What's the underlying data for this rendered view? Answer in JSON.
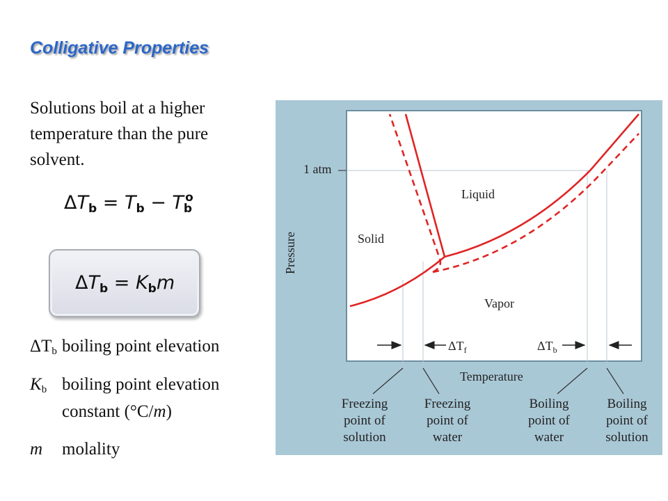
{
  "slide": {
    "title": "Colligative Properties",
    "intro": "Solutions boil at a higher temperature than the pure solvent.",
    "definitions": [
      {
        "symbol_main": "ΔT",
        "symbol_sub": "b",
        "text": "boiling point elevation"
      },
      {
        "symbol_main": "K",
        "symbol_sub": "b",
        "text": "boiling point elevation",
        "text2_prefix": "constant (°C/",
        "text2_italic": "m",
        "text2_suffix": ")"
      },
      {
        "symbol_main": "m",
        "symbol_sub": "",
        "text": "molality"
      }
    ]
  },
  "equations": {
    "eq1": {
      "delta": "Δ",
      "lhs": "T",
      "lhs_sub": "b",
      "eq": " = ",
      "t1": "T",
      "t1_sub": "b",
      "minus": " − ",
      "t2": "T",
      "t2_sup": "o"
    },
    "eq2": {
      "delta": "Δ",
      "lhs": "T",
      "lhs_sub": "b",
      "eq": " = ",
      "k": "K",
      "k_sub": "b",
      "m": "m"
    }
  },
  "diagram": {
    "y_axis_label": "Pressure",
    "x_axis_label": "Temperature",
    "pressure_mark": "1 atm",
    "region_labels": {
      "solid": "Solid",
      "liquid": "Liquid",
      "vapor": "Vapor"
    },
    "delta_labels": {
      "freezing_main": "ΔT",
      "freezing_sub": "f",
      "boiling_main": "ΔT",
      "boiling_sub": "b"
    },
    "callouts": [
      {
        "line1": "Freezing",
        "line2": "point of",
        "line3": "solution"
      },
      {
        "line1": "Freezing",
        "line2": "point of",
        "line3": "water"
      },
      {
        "line1": "Boiling",
        "line2": "point of",
        "line3": "water"
      },
      {
        "line1": "Boiling",
        "line2": "point of",
        "line3": "solution"
      }
    ],
    "colors": {
      "solvent_curve": "#e02424",
      "solution_curve": "#e02424",
      "frame_background": "#a9c8d6",
      "plot_background": "#ffffff"
    }
  }
}
